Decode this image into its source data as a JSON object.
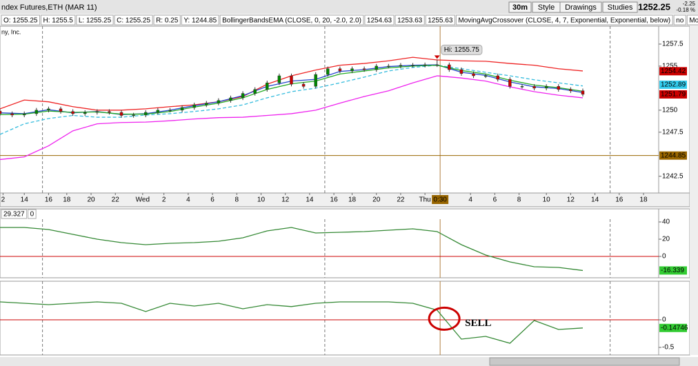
{
  "window": {
    "title": "ndex Futures,ETH (MAR 11)",
    "company_label": "ny, Inc.",
    "buttons": [
      "30m",
      "Style",
      "Drawings",
      "Studies"
    ],
    "last_price": "1252.25",
    "change": "-2.25",
    "change_pct": "-0.18 %"
  },
  "info_bar": [
    {
      "text": "O: 1255.25",
      "color": "#000000"
    },
    {
      "text": "H: 1255.5",
      "color": "#000000"
    },
    {
      "text": "L: 1255.25",
      "color": "#000000"
    },
    {
      "text": "C: 1255.25",
      "color": "#000000"
    },
    {
      "text": "R: 0.25",
      "color": "#000000"
    },
    {
      "text": "Y: 1244.85",
      "color": "#000000"
    },
    {
      "text": "BollingerBandsEMA (CLOSE, 0, 20, -2.0, 2.0)",
      "color": "#3399cc"
    },
    {
      "text": "1254.63",
      "color": "#3399cc"
    },
    {
      "text": "1253.63",
      "color": "#cc00cc"
    },
    {
      "text": "1255.63",
      "color": "#cc0000"
    },
    {
      "text": "MovingAvgCrossover (CLOSE, 4, 7, Exponential, Exponential, below)",
      "color": "#cc0000"
    },
    {
      "text": "no",
      "color": "#cc0000"
    },
    {
      "text": "MovA...",
      "color": "#008800"
    }
  ],
  "chart_data": [
    {
      "type": "candlestick",
      "xlim": [
        0,
        217
      ],
      "xticks": [
        {
          "value": 1,
          "label": "2"
        },
        {
          "value": 8,
          "label": "14"
        },
        {
          "value": 16,
          "label": "16"
        },
        {
          "value": 22,
          "label": "18"
        },
        {
          "value": 30,
          "label": "20"
        },
        {
          "value": 38,
          "label": "22"
        },
        {
          "value": 47,
          "label": "Wed"
        },
        {
          "value": 54,
          "label": "2"
        },
        {
          "value": 62,
          "label": "4"
        },
        {
          "value": 70,
          "label": "6"
        },
        {
          "value": 78,
          "label": "8"
        },
        {
          "value": 86,
          "label": "10"
        },
        {
          "value": 94,
          "label": "12"
        },
        {
          "value": 102,
          "label": "14"
        },
        {
          "value": 110,
          "label": "16"
        },
        {
          "value": 116,
          "label": "18"
        },
        {
          "value": 124,
          "label": "20"
        },
        {
          "value": 132,
          "label": "22"
        },
        {
          "value": 140,
          "label": "Thu"
        },
        {
          "value": 145,
          "label": "0:30"
        },
        {
          "value": 155,
          "label": "4"
        },
        {
          "value": 163,
          "label": "6"
        },
        {
          "value": 171,
          "label": "8"
        },
        {
          "value": 180,
          "label": "10"
        },
        {
          "value": 188,
          "label": "12"
        },
        {
          "value": 196,
          "label": "14"
        },
        {
          "value": 204,
          "label": "16"
        },
        {
          "value": 212,
          "label": "18"
        }
      ],
      "cursor_tick": 19,
      "session_breaks": [
        14,
        107,
        201
      ],
      "ylim": [
        1240.6,
        1259.53
      ],
      "yticks": [
        1242.5,
        1247.5,
        1250,
        1255,
        1257.5
      ],
      "up_color": "#008800",
      "down_color": "#cc0000",
      "x": [
        0,
        4,
        8,
        12,
        16,
        20,
        24,
        28,
        32,
        36,
        40,
        44,
        48,
        52,
        56,
        60,
        64,
        68,
        72,
        76,
        80,
        84,
        88,
        92,
        96,
        100,
        104,
        108,
        112,
        116,
        120,
        124,
        128,
        132,
        136,
        140,
        144,
        148,
        152,
        156,
        160,
        164,
        168,
        172,
        176,
        180,
        184,
        188,
        192
      ],
      "open": [
        1249.9,
        1249.6,
        1249.45,
        1249.6,
        1250,
        1250.15,
        1249.85,
        1249.6,
        1249.75,
        1249.85,
        1249.75,
        1249.4,
        1249.45,
        1249.75,
        1250,
        1250,
        1250.3,
        1250.6,
        1250.8,
        1251.1,
        1251.4,
        1251.9,
        1252.35,
        1253.1,
        1253.9,
        1252.95,
        1252.7,
        1254.05,
        1254.7,
        1254.45,
        1254.7,
        1254.6,
        1255,
        1255,
        1255.1,
        1255.1,
        1255.15,
        1255.15,
        1254.6,
        1254.15,
        1253.9,
        1253.9,
        1253.5,
        1252.7,
        1252.7,
        1252.5,
        1252.7,
        1252.35,
        1252.2
      ],
      "high": [
        1250.15,
        1249.85,
        1249.85,
        1250.25,
        1250.4,
        1250.4,
        1250.1,
        1250,
        1250.1,
        1250.1,
        1250,
        1249.7,
        1250,
        1250.25,
        1250.25,
        1250.55,
        1250.85,
        1251.05,
        1251.35,
        1251.65,
        1252.15,
        1252.6,
        1253.35,
        1254.15,
        1254.15,
        1253.2,
        1254.3,
        1254.95,
        1254.95,
        1254.95,
        1254.95,
        1255.25,
        1255.25,
        1255.35,
        1255.35,
        1255.4,
        1255.75,
        1255.4,
        1254.85,
        1254.4,
        1254.15,
        1254.15,
        1253.75,
        1252.95,
        1252.95,
        1252.95,
        1252.95,
        1252.6,
        1252.45
      ],
      "low": [
        1249.35,
        1249.2,
        1249.2,
        1249.35,
        1249.75,
        1249.6,
        1249.35,
        1249.35,
        1249.5,
        1249.5,
        1249.15,
        1249.15,
        1249.2,
        1249.5,
        1249.75,
        1249.75,
        1250.05,
        1250.35,
        1250.55,
        1250.85,
        1251.15,
        1251.65,
        1252.1,
        1252.85,
        1252.7,
        1252.45,
        1252.45,
        1253.8,
        1254.2,
        1254.2,
        1254.35,
        1254.35,
        1254.75,
        1254.75,
        1254.85,
        1254.85,
        1254.9,
        1254.35,
        1253.9,
        1253.65,
        1253.65,
        1253.25,
        1252.45,
        1252.45,
        1252.25,
        1252.25,
        1252.1,
        1251.95,
        1251.55
      ],
      "close": [
        1249.6,
        1249.45,
        1249.6,
        1250,
        1250.15,
        1249.85,
        1249.6,
        1249.75,
        1249.85,
        1249.75,
        1249.4,
        1249.45,
        1249.75,
        1250,
        1250,
        1250.3,
        1250.6,
        1250.8,
        1251.1,
        1251.4,
        1251.9,
        1252.35,
        1253.1,
        1253.9,
        1252.95,
        1252.7,
        1254.05,
        1254.7,
        1254.45,
        1254.7,
        1254.6,
        1255,
        1255,
        1255.1,
        1255.1,
        1255.15,
        1255.15,
        1254.6,
        1254.15,
        1253.9,
        1253.9,
        1253.5,
        1252.7,
        1252.7,
        1252.5,
        1252.7,
        1252.35,
        1252.2,
        1251.8
      ],
      "series": [
        {
          "color": "#ee2222",
          "dash": false,
          "x": [
            0,
            8,
            16,
            24,
            32,
            40,
            48,
            56,
            64,
            72,
            80,
            88,
            96,
            104,
            112,
            120,
            128,
            136,
            144,
            152,
            160,
            168,
            176,
            184,
            192
          ],
          "values": [
            1250.15,
            1251.15,
            1250.95,
            1250.4,
            1250,
            1250,
            1250.15,
            1250.4,
            1250.6,
            1250.95,
            1251.55,
            1252.95,
            1253.9,
            1254.55,
            1255.1,
            1255.3,
            1255.6,
            1256,
            1255.7,
            1255.6,
            1255.55,
            1255.3,
            1255.1,
            1254.7,
            1254.45
          ]
        },
        {
          "color": "#ee22ee",
          "dash": false,
          "x": [
            0,
            8,
            16,
            24,
            32,
            40,
            48,
            56,
            64,
            72,
            80,
            88,
            96,
            104,
            112,
            120,
            128,
            136,
            144,
            152,
            160,
            168,
            176,
            184,
            192
          ],
          "values": [
            1244.4,
            1244.7,
            1245.95,
            1247.65,
            1248.45,
            1248.6,
            1248.65,
            1248.8,
            1249,
            1249.15,
            1249.2,
            1249.4,
            1249.6,
            1250,
            1250.8,
            1251.55,
            1252.2,
            1253.1,
            1253.9,
            1253.65,
            1253.3,
            1252.65,
            1252.1,
            1251.7,
            1251.4
          ]
        },
        {
          "color": "#33bbdd",
          "dash": true,
          "x": [
            0,
            8,
            16,
            24,
            32,
            40,
            48,
            56,
            64,
            72,
            80,
            88,
            96,
            104,
            112,
            120,
            128,
            136,
            144,
            152,
            160,
            168,
            176,
            184,
            192
          ],
          "values": [
            1247.25,
            1248.45,
            1249.05,
            1249.4,
            1249.2,
            1249.2,
            1249.45,
            1249.6,
            1249.85,
            1250.15,
            1250.6,
            1251.4,
            1252.1,
            1252.5,
            1253.1,
            1253.75,
            1254.45,
            1254.85,
            1255.1,
            1254.7,
            1254.3,
            1253.9,
            1253.45,
            1253.1,
            1252.75
          ]
        },
        {
          "color": "#2244cc",
          "dash": false,
          "x": [
            0,
            8,
            16,
            24,
            32,
            40,
            48,
            56,
            64,
            72,
            80,
            88,
            96,
            104,
            112,
            120,
            128,
            136,
            144,
            152,
            160,
            168,
            176,
            184,
            192
          ],
          "values": [
            1249.7,
            1249.6,
            1250.05,
            1249.7,
            1249.85,
            1249.5,
            1249.6,
            1250,
            1250.5,
            1250.95,
            1251.65,
            1252.7,
            1253.3,
            1253.5,
            1254.4,
            1254.6,
            1254.95,
            1255.1,
            1255.15,
            1254.3,
            1253.95,
            1253.2,
            1252.65,
            1252.45,
            1252
          ]
        },
        {
          "color": "#22aa22",
          "dash": false,
          "x": [
            0,
            8,
            16,
            24,
            32,
            40,
            48,
            56,
            64,
            72,
            80,
            88,
            96,
            104,
            112,
            120,
            128,
            136,
            144,
            152,
            160,
            168,
            176,
            184,
            192
          ],
          "values": [
            1249.5,
            1249.55,
            1249.9,
            1249.75,
            1249.8,
            1249.55,
            1249.55,
            1249.85,
            1250.35,
            1250.8,
            1251.4,
            1252.35,
            1253,
            1253.3,
            1254.1,
            1254.45,
            1254.8,
            1255,
            1255.1,
            1254.5,
            1254.1,
            1253.4,
            1252.85,
            1252.55,
            1252.15
          ]
        }
      ],
      "reference_line": {
        "value": 1244.85,
        "color": "#996600"
      },
      "price_tags": [
        {
          "value": 1254.42,
          "color": "#cc0000",
          "text_color": "#ffffff"
        },
        {
          "value": 1252.89,
          "color": "#33ccee",
          "text_color": "#000000"
        },
        {
          "value": 1251.79,
          "color": "#cc0000",
          "text_color": "#ffffff"
        },
        {
          "value": 1244.85,
          "color": "#996600",
          "text_color": "#ffffff"
        }
      ],
      "annotation": {
        "text": "Hi: 1255.75",
        "x": 144,
        "y": 1255.75
      }
    },
    {
      "type": "line",
      "header_values": [
        29.327,
        0
      ],
      "ylim": [
        -24.8,
        43.2
      ],
      "yticks": [
        0,
        20,
        40
      ],
      "zero_line_color": "#cc0000",
      "series": [
        {
          "color": "#338833",
          "dash": false,
          "x": [
            0,
            8,
            16,
            24,
            32,
            40,
            48,
            56,
            64,
            72,
            80,
            88,
            96,
            104,
            112,
            120,
            128,
            136,
            144,
            152,
            160,
            168,
            176,
            184,
            192
          ],
          "values": [
            33.6,
            33.6,
            31.2,
            25.6,
            20,
            16,
            13.6,
            15.2,
            16,
            17.6,
            21.6,
            29.6,
            33.6,
            27.2,
            28,
            28.8,
            30.4,
            32,
            28.8,
            13.6,
            1.6,
            -6.4,
            -12,
            -12.8,
            -16.339
          ]
        }
      ],
      "price_tags": [
        {
          "value": -16.339,
          "color": "#33cc33",
          "text_color": "#000000"
        }
      ]
    },
    {
      "type": "line",
      "ylim": [
        -0.6375,
        0.7
      ],
      "yticks": [
        0,
        -0.5
      ],
      "zero_line_color": "#cc0000",
      "series": [
        {
          "color": "#338833",
          "dash": false,
          "x": [
            0,
            8,
            16,
            24,
            32,
            40,
            48,
            56,
            64,
            72,
            80,
            88,
            96,
            104,
            112,
            120,
            128,
            136,
            144,
            152,
            160,
            168,
            176,
            184,
            192
          ],
          "values": [
            0.325,
            0.3,
            0.275,
            0.3,
            0.325,
            0.3,
            0.15,
            0.3,
            0.25,
            0.3,
            0.2,
            0.275,
            0.24,
            0.3,
            0.325,
            0.325,
            0.325,
            0.3,
            0.175,
            -0.35,
            -0.3,
            -0.425,
            -0.0125,
            -0.175,
            -0.14746
          ]
        }
      ],
      "price_tags": [
        {
          "value": -0.14746,
          "color": "#33cc33",
          "text_color": "#000000"
        }
      ],
      "annotation": {
        "text": "SELL",
        "x": 145,
        "y": 0.02,
        "color": "#cc0000"
      }
    }
  ]
}
